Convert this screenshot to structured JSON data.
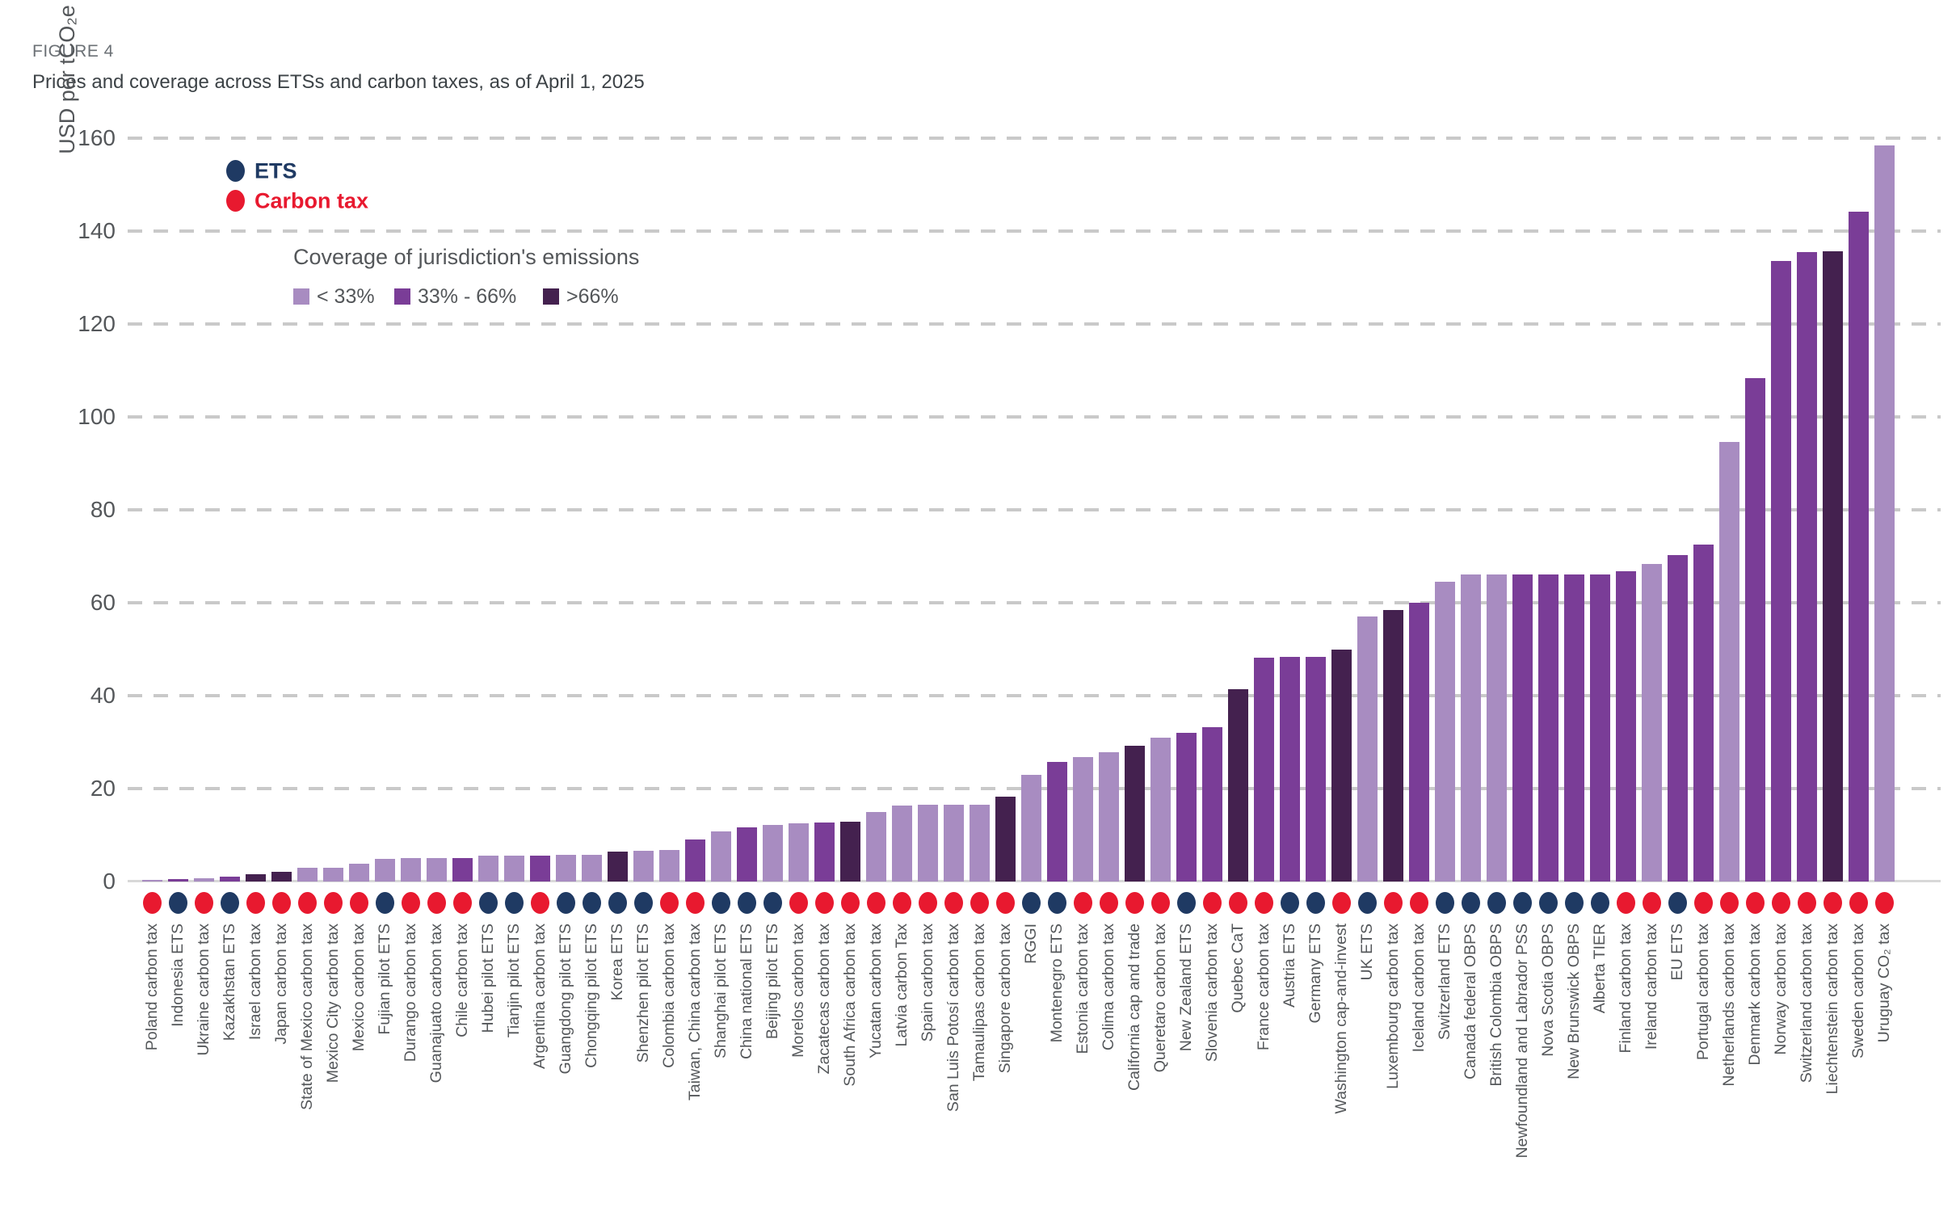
{
  "figure_label": "FIGURE 4",
  "title": "Prices and coverage across ETSs and carbon taxes, as of April 1, 2025",
  "legend": {
    "ets_label": "ETS",
    "carbon_tax_label": "Carbon tax",
    "ets_color": "#1f3a63",
    "carbon_tax_color": "#e8192f"
  },
  "coverage_legend": {
    "title": "Coverage of jurisdiction's emissions",
    "items": [
      {
        "key": "low",
        "label": "< 33%",
        "color": "#a88cc1"
      },
      {
        "key": "mid",
        "label": "33% - 66%",
        "color": "#7a3d97"
      },
      {
        "key": "high",
        "label": ">66%",
        "color": "#44214f"
      }
    ]
  },
  "y_axis": {
    "title": "USD per tCO₂e",
    "ticks": [
      0,
      20,
      40,
      60,
      80,
      100,
      120,
      140,
      160
    ],
    "max": 160
  },
  "chart_data": {
    "type": "bar",
    "title": "Prices and coverage across ETSs and carbon taxes, as of April 1, 2025",
    "xlabel": "",
    "ylabel": "USD per tCO₂e",
    "ylim": [
      0,
      160
    ],
    "grid": "horizontal-dashed",
    "legend_position": "top-left-inside",
    "points": [
      {
        "label": "Poland carbon tax",
        "value": 0.3,
        "coverage": "low",
        "instrument": "carbon_tax"
      },
      {
        "label": "Indonesia ETS",
        "value": 0.6,
        "coverage": "mid",
        "instrument": "ets"
      },
      {
        "label": "Ukraine carbon tax",
        "value": 0.7,
        "coverage": "low",
        "instrument": "carbon_tax"
      },
      {
        "label": "Kazakhstan ETS",
        "value": 1.1,
        "coverage": "mid",
        "instrument": "ets"
      },
      {
        "label": "Israel carbon tax",
        "value": 1.6,
        "coverage": "high",
        "instrument": "carbon_tax"
      },
      {
        "label": "Japan carbon tax",
        "value": 2.1,
        "coverage": "high",
        "instrument": "carbon_tax"
      },
      {
        "label": "State of Mexico carbon tax",
        "value": 2.9,
        "coverage": "low",
        "instrument": "carbon_tax"
      },
      {
        "label": "Mexico City carbon tax",
        "value": 3.0,
        "coverage": "low",
        "instrument": "carbon_tax"
      },
      {
        "label": "Mexico carbon tax",
        "value": 3.8,
        "coverage": "low",
        "instrument": "carbon_tax"
      },
      {
        "label": "Fujian pilot ETS",
        "value": 4.9,
        "coverage": "low",
        "instrument": "ets"
      },
      {
        "label": "Durango carbon tax",
        "value": 5.0,
        "coverage": "low",
        "instrument": "carbon_tax"
      },
      {
        "label": "Guanajuato carbon tax",
        "value": 5.0,
        "coverage": "low",
        "instrument": "carbon_tax"
      },
      {
        "label": "Chile carbon tax",
        "value": 5.0,
        "coverage": "mid",
        "instrument": "carbon_tax"
      },
      {
        "label": "Hubei pilot ETS",
        "value": 5.6,
        "coverage": "low",
        "instrument": "ets"
      },
      {
        "label": "Tianjin pilot ETS",
        "value": 5.6,
        "coverage": "low",
        "instrument": "ets"
      },
      {
        "label": "Argentina carbon tax",
        "value": 5.6,
        "coverage": "mid",
        "instrument": "carbon_tax"
      },
      {
        "label": "Guangdong pilot ETS",
        "value": 5.7,
        "coverage": "low",
        "instrument": "ets"
      },
      {
        "label": "Chongqing pilot ETS",
        "value": 5.8,
        "coverage": "low",
        "instrument": "ets"
      },
      {
        "label": "Korea ETS",
        "value": 6.5,
        "coverage": "high",
        "instrument": "ets"
      },
      {
        "label": "Shenzhen pilot ETS",
        "value": 6.6,
        "coverage": "low",
        "instrument": "ets"
      },
      {
        "label": "Colombia carbon tax",
        "value": 6.8,
        "coverage": "low",
        "instrument": "carbon_tax"
      },
      {
        "label": "Taiwan, China carbon tax",
        "value": 9.0,
        "coverage": "mid",
        "instrument": "carbon_tax"
      },
      {
        "label": "Shanghai pilot ETS",
        "value": 10.7,
        "coverage": "low",
        "instrument": "ets"
      },
      {
        "label": "China national ETS",
        "value": 11.7,
        "coverage": "mid",
        "instrument": "ets"
      },
      {
        "label": "Beijing pilot ETS",
        "value": 12.2,
        "coverage": "low",
        "instrument": "ets"
      },
      {
        "label": "Morelos carbon tax",
        "value": 12.5,
        "coverage": "low",
        "instrument": "carbon_tax"
      },
      {
        "label": "Zacatecas carbon tax",
        "value": 12.7,
        "coverage": "mid",
        "instrument": "carbon_tax"
      },
      {
        "label": "South Africa carbon tax",
        "value": 12.9,
        "coverage": "high",
        "instrument": "carbon_tax"
      },
      {
        "label": "Yucatan carbon tax",
        "value": 15.0,
        "coverage": "low",
        "instrument": "carbon_tax"
      },
      {
        "label": "Latvia carbon Tax",
        "value": 16.4,
        "coverage": "low",
        "instrument": "carbon_tax"
      },
      {
        "label": "Spain carbon tax",
        "value": 16.6,
        "coverage": "low",
        "instrument": "carbon_tax"
      },
      {
        "label": "San Luis Potosí carbon tax",
        "value": 16.6,
        "coverage": "low",
        "instrument": "carbon_tax"
      },
      {
        "label": "Tamaulipas carbon tax",
        "value": 16.6,
        "coverage": "low",
        "instrument": "carbon_tax"
      },
      {
        "label": "Singapore carbon tax",
        "value": 18.3,
        "coverage": "high",
        "instrument": "carbon_tax"
      },
      {
        "label": "RGGI",
        "value": 23.0,
        "coverage": "low",
        "instrument": "ets"
      },
      {
        "label": "Montenegro ETS",
        "value": 25.7,
        "coverage": "mid",
        "instrument": "ets"
      },
      {
        "label": "Estonia carbon tax",
        "value": 26.7,
        "coverage": "low",
        "instrument": "carbon_tax"
      },
      {
        "label": "Colima carbon tax",
        "value": 27.8,
        "coverage": "low",
        "instrument": "carbon_tax"
      },
      {
        "label": "California cap and trade",
        "value": 29.2,
        "coverage": "high",
        "instrument": "carbon_tax"
      },
      {
        "label": "Queretaro carbon tax",
        "value": 31.0,
        "coverage": "low",
        "instrument": "carbon_tax"
      },
      {
        "label": "New Zealand ETS",
        "value": 32.0,
        "coverage": "mid",
        "instrument": "ets"
      },
      {
        "label": "Slovenia carbon tax",
        "value": 33.2,
        "coverage": "mid",
        "instrument": "carbon_tax"
      },
      {
        "label": "Quebec CaT",
        "value": 41.4,
        "coverage": "high",
        "instrument": "carbon_tax"
      },
      {
        "label": "France carbon tax",
        "value": 48.2,
        "coverage": "mid",
        "instrument": "carbon_tax"
      },
      {
        "label": "Austria ETS",
        "value": 48.3,
        "coverage": "mid",
        "instrument": "ets"
      },
      {
        "label": "Germany ETS",
        "value": 48.4,
        "coverage": "mid",
        "instrument": "ets"
      },
      {
        "label": "Washington cap-and-invest",
        "value": 50.0,
        "coverage": "high",
        "instrument": "carbon_tax"
      },
      {
        "label": "UK ETS",
        "value": 57.0,
        "coverage": "low",
        "instrument": "ets"
      },
      {
        "label": "Luxembourg carbon tax",
        "value": 58.4,
        "coverage": "high",
        "instrument": "carbon_tax"
      },
      {
        "label": "Iceland carbon tax",
        "value": 60.0,
        "coverage": "mid",
        "instrument": "carbon_tax"
      },
      {
        "label": "Switzerland ETS",
        "value": 64.5,
        "coverage": "low",
        "instrument": "ets"
      },
      {
        "label": "Canada federal OBPS",
        "value": 66.1,
        "coverage": "low",
        "instrument": "ets"
      },
      {
        "label": "British Colombia OBPS",
        "value": 66.1,
        "coverage": "low",
        "instrument": "ets"
      },
      {
        "label": "Newfoundland and Labrador PSS",
        "value": 66.1,
        "coverage": "mid",
        "instrument": "ets"
      },
      {
        "label": "Nova Scotia OBPS",
        "value": 66.1,
        "coverage": "mid",
        "instrument": "ets"
      },
      {
        "label": "New Brunswick OBPS",
        "value": 66.1,
        "coverage": "mid",
        "instrument": "ets"
      },
      {
        "label": "Alberta TIER",
        "value": 66.1,
        "coverage": "mid",
        "instrument": "ets"
      },
      {
        "label": "Finland carbon tax",
        "value": 66.7,
        "coverage": "mid",
        "instrument": "carbon_tax"
      },
      {
        "label": "Ireland carbon tax",
        "value": 68.3,
        "coverage": "low",
        "instrument": "carbon_tax"
      },
      {
        "label": "EU ETS",
        "value": 70.2,
        "coverage": "mid",
        "instrument": "ets"
      },
      {
        "label": "Portugal carbon tax",
        "value": 72.6,
        "coverage": "mid",
        "instrument": "carbon_tax"
      },
      {
        "label": "Netherlands carbon tax",
        "value": 94.6,
        "coverage": "low",
        "instrument": "carbon_tax"
      },
      {
        "label": "Denmark carbon tax",
        "value": 108.3,
        "coverage": "mid",
        "instrument": "carbon_tax"
      },
      {
        "label": "Norway carbon tax",
        "value": 133.6,
        "coverage": "mid",
        "instrument": "carbon_tax"
      },
      {
        "label": "Switzerland carbon tax",
        "value": 135.5,
        "coverage": "mid",
        "instrument": "carbon_tax"
      },
      {
        "label": "Liechtenstein carbon tax",
        "value": 135.7,
        "coverage": "high",
        "instrument": "carbon_tax"
      },
      {
        "label": "Sweden carbon tax",
        "value": 144.2,
        "coverage": "mid",
        "instrument": "carbon_tax"
      },
      {
        "label": "Uruguay CO₂ tax",
        "value": 158.4,
        "coverage": "low",
        "instrument": "carbon_tax"
      }
    ]
  }
}
